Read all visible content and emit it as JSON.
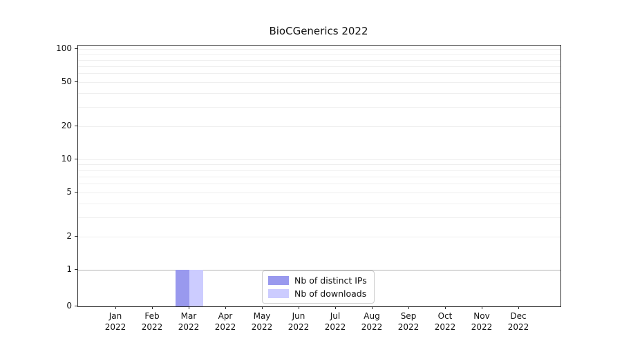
{
  "chart_data": {
    "type": "bar",
    "title": "BioCGenerics 2022",
    "yscale": "symlog",
    "ylim": [
      0,
      100
    ],
    "yticks": [
      0,
      1,
      2,
      5,
      10,
      20,
      50,
      100
    ],
    "grid": "horizontal minor+major light gray, darker line at y=1",
    "legend_position": "lower center inside axes",
    "categories": [
      {
        "month": "Jan",
        "year": "2022"
      },
      {
        "month": "Feb",
        "year": "2022"
      },
      {
        "month": "Mar",
        "year": "2022"
      },
      {
        "month": "Apr",
        "year": "2022"
      },
      {
        "month": "May",
        "year": "2022"
      },
      {
        "month": "Jun",
        "year": "2022"
      },
      {
        "month": "Jul",
        "year": "2022"
      },
      {
        "month": "Aug",
        "year": "2022"
      },
      {
        "month": "Sep",
        "year": "2022"
      },
      {
        "month": "Oct",
        "year": "2022"
      },
      {
        "month": "Nov",
        "year": "2022"
      },
      {
        "month": "Dec",
        "year": "2022"
      }
    ],
    "series": [
      {
        "name": "Nb of distinct IPs",
        "color": "#9999ee",
        "values": [
          0,
          0,
          1,
          0,
          0,
          0,
          0,
          0,
          0,
          0,
          0,
          0
        ]
      },
      {
        "name": "Nb of downloads",
        "color": "#ccccff",
        "values": [
          0,
          0,
          1,
          0,
          0,
          0,
          0,
          0,
          0,
          0,
          0,
          0
        ]
      }
    ]
  }
}
